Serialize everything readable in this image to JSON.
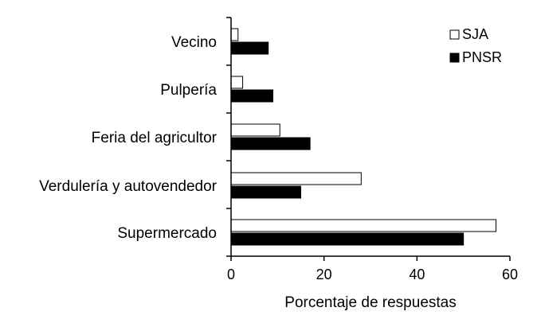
{
  "chart_data": {
    "type": "bar",
    "orientation": "horizontal",
    "title": "",
    "xlabel": "Porcentaje de respuestas",
    "ylabel": "",
    "categories": [
      "Vecino",
      "Pulpería",
      "Feria del agricultor",
      "Verdulería y autovendedor",
      "Supermercado"
    ],
    "series": [
      {
        "name": "SJA",
        "color": "#ffffff",
        "values": [
          1.5,
          2.5,
          10.5,
          28,
          57
        ]
      },
      {
        "name": "PNSR",
        "color": "#000000",
        "values": [
          8,
          9,
          17,
          15,
          50
        ]
      }
    ],
    "xlim": [
      0,
      60
    ],
    "xticks": [
      "0",
      "20",
      "40",
      "60"
    ],
    "grid": false,
    "legend": {
      "position": "top-right"
    }
  }
}
